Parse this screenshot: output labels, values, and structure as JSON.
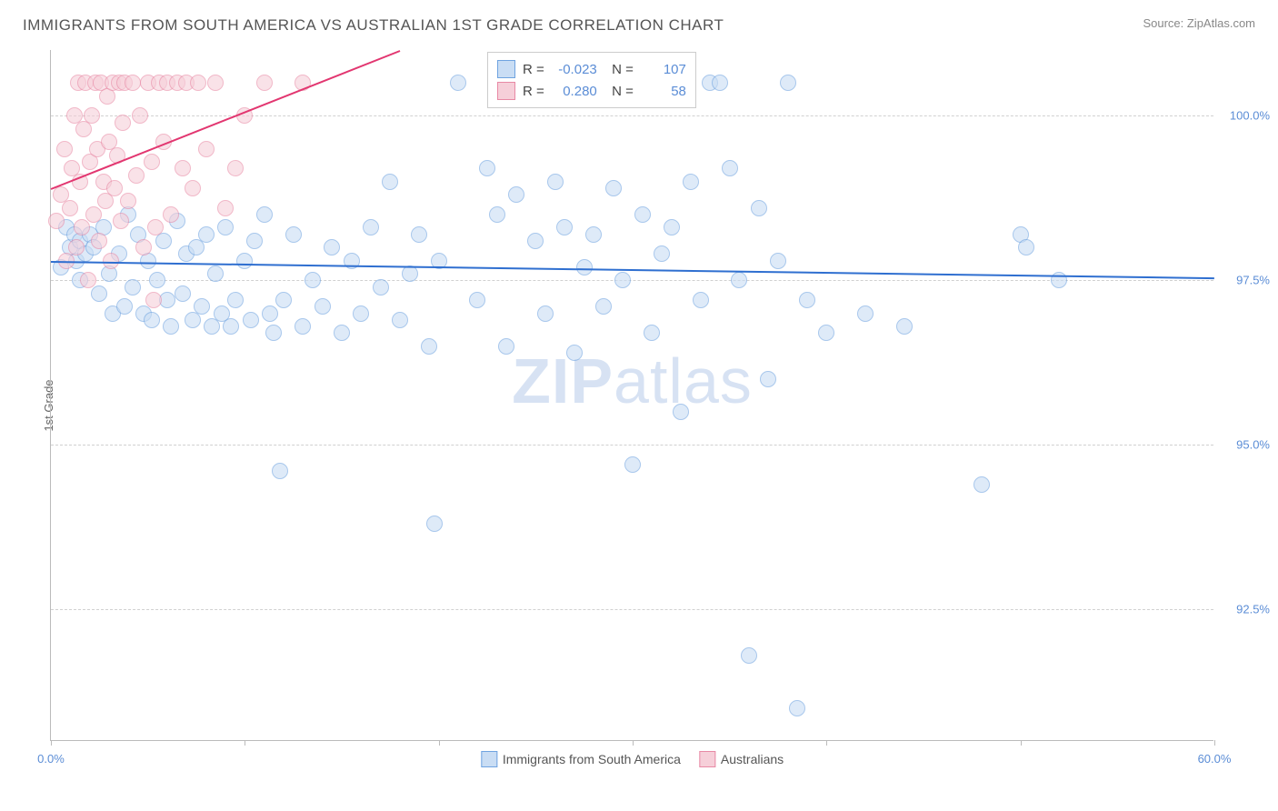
{
  "title": "IMMIGRANTS FROM SOUTH AMERICA VS AUSTRALIAN 1ST GRADE CORRELATION CHART",
  "source": "Source: ZipAtlas.com",
  "y_axis_label": "1st Grade",
  "watermark_bold": "ZIP",
  "watermark_light": "atlas",
  "chart": {
    "type": "scatter",
    "xlim": [
      0,
      60
    ],
    "ylim": [
      90.5,
      101
    ],
    "x_ticks": [
      0,
      10,
      20,
      30,
      40,
      50,
      60
    ],
    "x_tick_labels": {
      "0": "0.0%",
      "60": "60.0%"
    },
    "y_ticks": [
      92.5,
      95.0,
      97.5,
      100.0
    ],
    "y_tick_labels": [
      "92.5%",
      "95.0%",
      "97.5%",
      "100.0%"
    ],
    "background_color": "#ffffff",
    "grid_color": "#d0d0d0",
    "point_radius": 9,
    "series": [
      {
        "name": "Immigrants from South America",
        "color_fill": "#c9ddf4",
        "color_stroke": "#6fa3e0",
        "fill_opacity": 0.6,
        "trend": {
          "color": "#2f6fd0",
          "x1": 0,
          "y1": 97.8,
          "x2": 60,
          "y2": 97.55
        },
        "stats": {
          "R": "-0.023",
          "N": "107"
        },
        "points": [
          [
            0.5,
            97.7
          ],
          [
            0.8,
            98.3
          ],
          [
            1.0,
            98.0
          ],
          [
            1.2,
            98.2
          ],
          [
            1.3,
            97.8
          ],
          [
            1.5,
            98.1
          ],
          [
            1.5,
            97.5
          ],
          [
            1.8,
            97.9
          ],
          [
            2.0,
            98.2
          ],
          [
            2.2,
            98.0
          ],
          [
            2.5,
            97.3
          ],
          [
            2.7,
            98.3
          ],
          [
            3,
            97.6
          ],
          [
            3.2,
            97.0
          ],
          [
            3.5,
            97.9
          ],
          [
            3.8,
            97.1
          ],
          [
            4.0,
            98.5
          ],
          [
            4.2,
            97.4
          ],
          [
            4.5,
            98.2
          ],
          [
            4.8,
            97.0
          ],
          [
            5,
            97.8
          ],
          [
            5.2,
            96.9
          ],
          [
            5.5,
            97.5
          ],
          [
            5.8,
            98.1
          ],
          [
            6,
            97.2
          ],
          [
            6.2,
            96.8
          ],
          [
            6.5,
            98.4
          ],
          [
            6.8,
            97.3
          ],
          [
            7,
            97.9
          ],
          [
            7.3,
            96.9
          ],
          [
            7.5,
            98.0
          ],
          [
            7.8,
            97.1
          ],
          [
            8,
            98.2
          ],
          [
            8.3,
            96.8
          ],
          [
            8.5,
            97.6
          ],
          [
            8.8,
            97.0
          ],
          [
            9,
            98.3
          ],
          [
            9.3,
            96.8
          ],
          [
            9.5,
            97.2
          ],
          [
            10,
            97.8
          ],
          [
            10.3,
            96.9
          ],
          [
            10.5,
            98.1
          ],
          [
            11,
            98.5
          ],
          [
            11.3,
            97.0
          ],
          [
            11.5,
            96.7
          ],
          [
            11.8,
            94.6
          ],
          [
            12,
            97.2
          ],
          [
            12.5,
            98.2
          ],
          [
            13,
            96.8
          ],
          [
            13.5,
            97.5
          ],
          [
            14,
            97.1
          ],
          [
            14.5,
            98.0
          ],
          [
            15,
            96.7
          ],
          [
            15.5,
            97.8
          ],
          [
            16,
            97.0
          ],
          [
            16.5,
            98.3
          ],
          [
            17,
            97.4
          ],
          [
            17.5,
            99.0
          ],
          [
            18,
            96.9
          ],
          [
            18.5,
            97.6
          ],
          [
            19,
            98.2
          ],
          [
            19.5,
            96.5
          ],
          [
            19.8,
            93.8
          ],
          [
            20,
            97.8
          ],
          [
            21,
            100.5
          ],
          [
            22,
            97.2
          ],
          [
            22.5,
            99.2
          ],
          [
            23,
            98.5
          ],
          [
            23.5,
            96.5
          ],
          [
            24,
            98.8
          ],
          [
            24.5,
            100.5
          ],
          [
            25,
            98.1
          ],
          [
            25.5,
            97.0
          ],
          [
            26,
            99.0
          ],
          [
            26.5,
            98.3
          ],
          [
            27,
            96.4
          ],
          [
            27.5,
            97.7
          ],
          [
            28,
            98.2
          ],
          [
            28.5,
            97.1
          ],
          [
            29,
            98.9
          ],
          [
            29.5,
            97.5
          ],
          [
            30,
            94.7
          ],
          [
            30.5,
            98.5
          ],
          [
            31,
            96.7
          ],
          [
            31.5,
            97.9
          ],
          [
            32,
            98.3
          ],
          [
            32.5,
            95.5
          ],
          [
            33,
            99.0
          ],
          [
            33.5,
            97.2
          ],
          [
            34,
            100.5
          ],
          [
            34.5,
            100.5
          ],
          [
            35,
            99.2
          ],
          [
            35.5,
            97.5
          ],
          [
            36,
            91.8
          ],
          [
            36.5,
            98.6
          ],
          [
            37,
            96.0
          ],
          [
            37.5,
            97.8
          ],
          [
            38,
            100.5
          ],
          [
            38.5,
            91.0
          ],
          [
            39,
            97.2
          ],
          [
            40,
            96.7
          ],
          [
            42,
            97.0
          ],
          [
            44,
            96.8
          ],
          [
            48,
            94.4
          ],
          [
            50,
            98.2
          ],
          [
            50.3,
            98.0
          ],
          [
            52,
            97.5
          ]
        ]
      },
      {
        "name": "Australians",
        "color_fill": "#f6cfd9",
        "color_stroke": "#e889a5",
        "fill_opacity": 0.6,
        "trend": {
          "color": "#e23670",
          "x1": 0,
          "y1": 98.9,
          "x2": 18,
          "y2": 101
        },
        "stats": {
          "R": "0.280",
          "N": "58"
        },
        "points": [
          [
            0.3,
            98.4
          ],
          [
            0.5,
            98.8
          ],
          [
            0.7,
            99.5
          ],
          [
            0.8,
            97.8
          ],
          [
            1.0,
            98.6
          ],
          [
            1.1,
            99.2
          ],
          [
            1.2,
            100.0
          ],
          [
            1.3,
            98.0
          ],
          [
            1.4,
            100.5
          ],
          [
            1.5,
            99.0
          ],
          [
            1.6,
            98.3
          ],
          [
            1.7,
            99.8
          ],
          [
            1.8,
            100.5
          ],
          [
            1.9,
            97.5
          ],
          [
            2.0,
            99.3
          ],
          [
            2.1,
            100.0
          ],
          [
            2.2,
            98.5
          ],
          [
            2.3,
            100.5
          ],
          [
            2.4,
            99.5
          ],
          [
            2.5,
            98.1
          ],
          [
            2.6,
            100.5
          ],
          [
            2.7,
            99.0
          ],
          [
            2.8,
            98.7
          ],
          [
            2.9,
            100.3
          ],
          [
            3.0,
            99.6
          ],
          [
            3.1,
            97.8
          ],
          [
            3.2,
            100.5
          ],
          [
            3.3,
            98.9
          ],
          [
            3.4,
            99.4
          ],
          [
            3.5,
            100.5
          ],
          [
            3.6,
            98.4
          ],
          [
            3.7,
            99.9
          ],
          [
            3.8,
            100.5
          ],
          [
            4.0,
            98.7
          ],
          [
            4.2,
            100.5
          ],
          [
            4.4,
            99.1
          ],
          [
            4.6,
            100.0
          ],
          [
            4.8,
            98.0
          ],
          [
            5.0,
            100.5
          ],
          [
            5.2,
            99.3
          ],
          [
            5.4,
            98.3
          ],
          [
            5.6,
            100.5
          ],
          [
            5.8,
            99.6
          ],
          [
            6.0,
            100.5
          ],
          [
            6.2,
            98.5
          ],
          [
            6.5,
            100.5
          ],
          [
            6.8,
            99.2
          ],
          [
            7.0,
            100.5
          ],
          [
            7.3,
            98.9
          ],
          [
            7.6,
            100.5
          ],
          [
            8.0,
            99.5
          ],
          [
            8.5,
            100.5
          ],
          [
            9.0,
            98.6
          ],
          [
            9.5,
            99.2
          ],
          [
            10,
            100.0
          ],
          [
            11,
            100.5
          ],
          [
            13,
            100.5
          ],
          [
            5.3,
            97.2
          ]
        ]
      }
    ]
  },
  "legend": {
    "series1_label": "Immigrants from South America",
    "series2_label": "Australians"
  }
}
